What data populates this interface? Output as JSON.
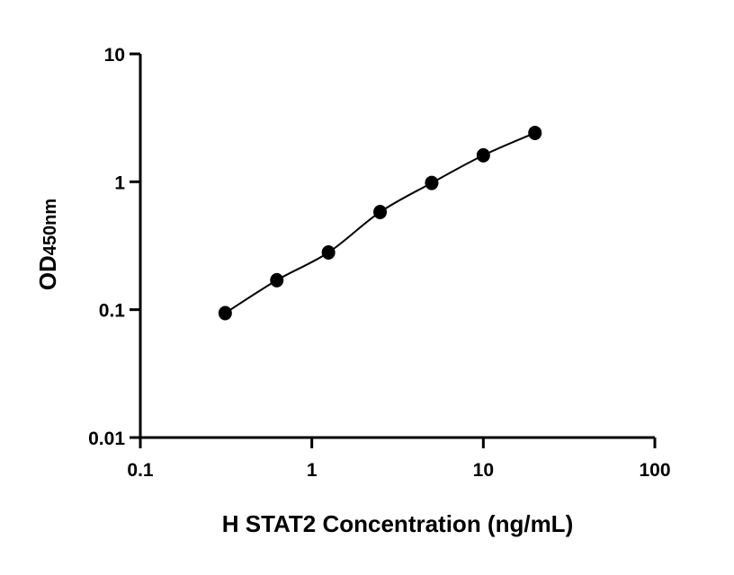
{
  "chart_data": {
    "type": "scatter",
    "xlabel": "H STAT2 Concentration (ng/mL)",
    "ylabel": "OD",
    "ylabel_subscript": "450nm",
    "x_scale": "log",
    "y_scale": "log",
    "xlim": [
      0.1,
      100
    ],
    "ylim": [
      0.01,
      10
    ],
    "x_ticks": [
      "0.1",
      "1",
      "10",
      "100"
    ],
    "y_ticks": [
      "0.01",
      "0.1",
      "1",
      "10"
    ],
    "grid": false,
    "fit_curve": true,
    "marker_color": "#000000",
    "x": [
      0.3125,
      0.625,
      1.25,
      2.5,
      5,
      10,
      20
    ],
    "y": [
      0.094,
      0.17,
      0.28,
      0.58,
      0.98,
      1.61,
      2.41
    ]
  }
}
